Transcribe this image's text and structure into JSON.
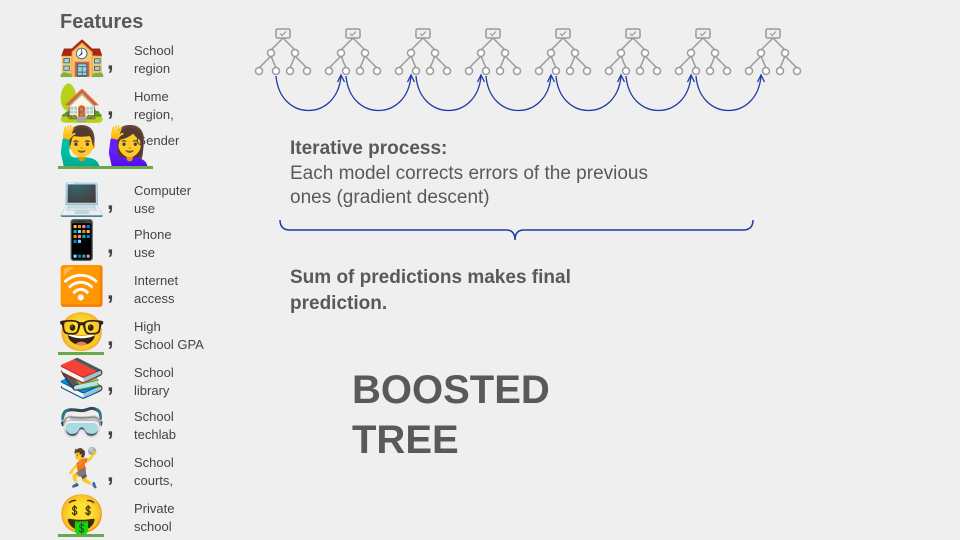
{
  "features": {
    "title": "Features",
    "items": [
      {
        "icons": [
          "🏫"
        ],
        "icon_name": "school-icon",
        "label": "School\nregion",
        "comma": ",",
        "underline": false
      },
      {
        "icons": [
          "🏡"
        ],
        "icon_name": "house-icon",
        "label": "Home\nregion,",
        "comma": ",",
        "underline": false
      },
      {
        "icons": [
          "🙋‍♂️",
          "🙋‍♀️"
        ],
        "icon_name": "gender-icon",
        "label": "Gender",
        "comma": "",
        "underline": true
      },
      {
        "icons": [
          "💻"
        ],
        "icon_name": "laptop-icon",
        "label": "Computer\n use",
        "comma": ",",
        "underline": false
      },
      {
        "icons": [
          "📱"
        ],
        "icon_name": "phone-icon",
        "label": "Phone\nuse",
        "comma": ",",
        "underline": false
      },
      {
        "icons": [
          "🛜"
        ],
        "icon_name": "wifi-icon",
        "label": "Internet\naccess",
        "comma": ",",
        "underline": false
      },
      {
        "icons": [
          "🤓"
        ],
        "icon_name": "nerd-face-icon",
        "label": "High\nSchool GPA",
        "comma": ",",
        "underline": true
      },
      {
        "icons": [
          "📚"
        ],
        "icon_name": "books-icon",
        "label": "School\nlibrary",
        "comma": ",",
        "underline": false
      },
      {
        "icons": [
          "🥽"
        ],
        "icon_name": "goggles-icon",
        "label": "School\ntechlab",
        "comma": ",",
        "underline": false
      },
      {
        "icons": [
          "🤾"
        ],
        "icon_name": "handball-icon",
        "label": "School\ncourts,",
        "comma": ",",
        "underline": false
      },
      {
        "icons": [
          "🤑"
        ],
        "icon_name": "money-face-icon",
        "label": "Private\nschool",
        "comma": "",
        "underline": true
      }
    ]
  },
  "tree_count": 8,
  "iterative": {
    "title": "Iterative process:",
    "body": "Each model corrects errors of the previous ones (gradient descent)"
  },
  "sum_text": " Sum of predictions makes final\nprediction.",
  "boosted_label": "BOOSTED\nTREE",
  "colors": {
    "text": "#595959",
    "arc": "#1f3aa6",
    "tree": "#999999",
    "underline": "#6aa84f"
  }
}
